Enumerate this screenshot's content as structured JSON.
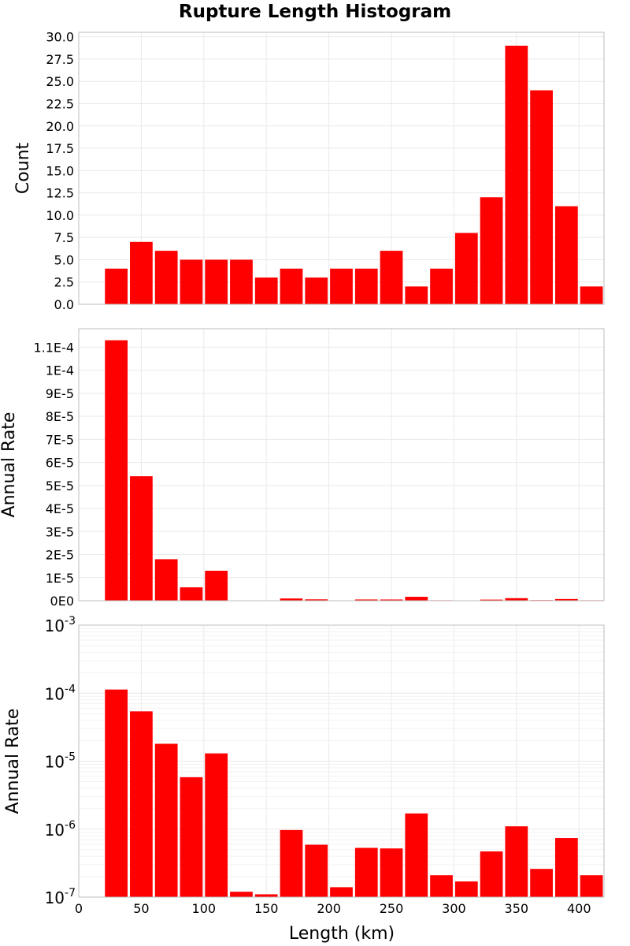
{
  "chart_data": {
    "title": "Rupture Length Histogram",
    "type": "bar",
    "bar_color": "#ff0000",
    "x": {
      "label": "Length (km)",
      "lim": [
        0,
        420
      ],
      "bin_width": 20,
      "bin_centers": [
        30,
        50,
        70,
        90,
        110,
        130,
        150,
        170,
        190,
        210,
        230,
        250,
        270,
        290,
        310,
        330,
        350,
        370,
        390,
        410
      ],
      "ticks": [
        0,
        50,
        100,
        150,
        200,
        250,
        300,
        350,
        400
      ],
      "tick_labels": [
        "0",
        "50",
        "100",
        "150",
        "200",
        "250",
        "300",
        "350",
        "400"
      ]
    },
    "panels": [
      {
        "type": "bar",
        "ylabel": "Count",
        "scale": "linear",
        "ylim": [
          0,
          30.5
        ],
        "grid": true,
        "values": [
          4,
          7,
          6,
          5,
          5,
          5,
          3,
          4,
          3,
          4,
          4,
          6,
          2,
          4,
          8,
          12,
          29,
          24,
          11,
          2
        ],
        "ticks": [
          0,
          2.5,
          5,
          7.5,
          10,
          12.5,
          15,
          17.5,
          20,
          22.5,
          25,
          27.5,
          30
        ],
        "tick_labels": [
          "0.0",
          "2.5",
          "5.0",
          "7.5",
          "10.0",
          "12.5",
          "15.0",
          "17.5",
          "20.0",
          "22.5",
          "25.0",
          "27.5",
          "30.0"
        ]
      },
      {
        "type": "bar",
        "ylabel": "Annual Rate",
        "scale": "linear",
        "ylim": [
          0,
          0.000118
        ],
        "grid": true,
        "values": [
          0.000113,
          5.4e-05,
          1.8e-05,
          5.8e-06,
          1.3e-05,
          1.2e-07,
          1.1e-07,
          9.7e-07,
          5.9e-07,
          1.4e-07,
          5.3e-07,
          5.2e-07,
          1.7e-06,
          2.1e-07,
          1.7e-07,
          4.7e-07,
          1.1e-06,
          2.6e-07,
          7.4e-07,
          2.1e-07
        ],
        "ticks": [
          0,
          1e-05,
          2e-05,
          3e-05,
          4e-05,
          5e-05,
          6e-05,
          7e-05,
          8e-05,
          9e-05,
          0.0001,
          0.00011
        ],
        "tick_labels": [
          "0E0",
          "1E-5",
          "2E-5",
          "3E-5",
          "4E-5",
          "5E-5",
          "6E-5",
          "7E-5",
          "8E-5",
          "9E-5",
          "1E-4",
          "1.1E-4"
        ]
      },
      {
        "type": "bar",
        "ylabel": "Annual Rate",
        "scale": "log",
        "ylim": [
          1e-07,
          0.001
        ],
        "grid": true,
        "values": [
          0.000113,
          5.4e-05,
          1.8e-05,
          5.8e-06,
          1.3e-05,
          1.2e-07,
          1.1e-07,
          9.7e-07,
          5.9e-07,
          1.4e-07,
          5.3e-07,
          5.2e-07,
          1.7e-06,
          2.1e-07,
          1.7e-07,
          4.7e-07,
          1.1e-06,
          2.6e-07,
          7.4e-07,
          2.1e-07
        ],
        "ticks": [
          1e-07,
          1e-06,
          1e-05,
          0.0001,
          0.001
        ],
        "tick_labels": [
          {
            "base": "10",
            "exp": "-7"
          },
          {
            "base": "10",
            "exp": "-6"
          },
          {
            "base": "10",
            "exp": "-5"
          },
          {
            "base": "10",
            "exp": "-4"
          },
          {
            "base": "10",
            "exp": "-3"
          }
        ]
      }
    ]
  }
}
